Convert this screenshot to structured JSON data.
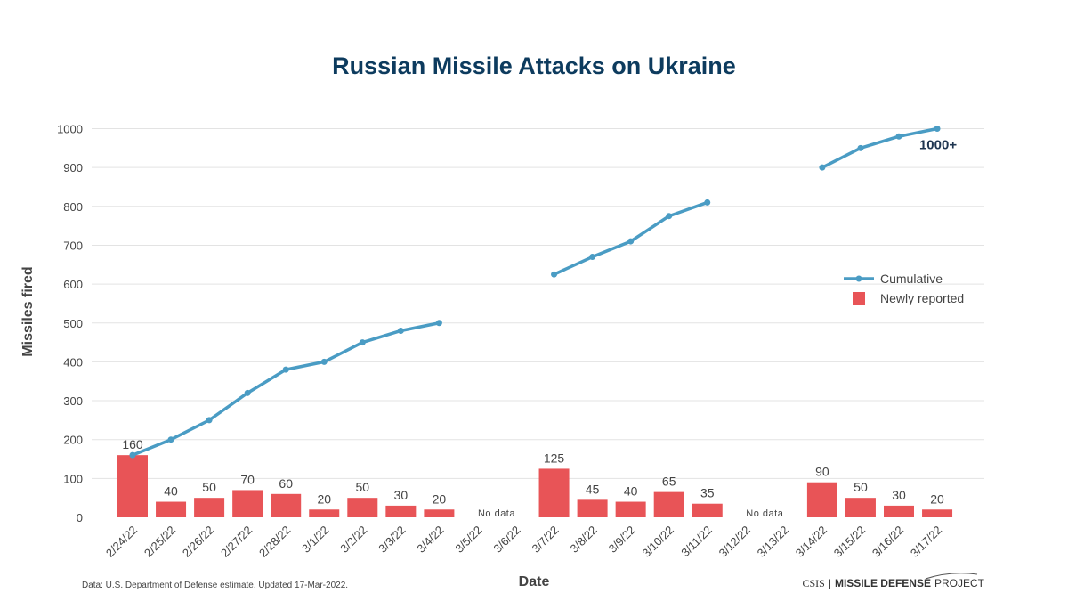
{
  "chart_data": {
    "type": "bar",
    "title": "Russian Missile Attacks on Ukraine",
    "xlabel": "Date",
    "ylabel": "Missiles fired",
    "ylim": [
      0,
      1000
    ],
    "yticks": [
      0,
      100,
      200,
      300,
      400,
      500,
      600,
      700,
      800,
      900,
      1000
    ],
    "grid": true,
    "legend_position": "right",
    "categories": [
      "2/24/22",
      "2/25/22",
      "2/26/22",
      "2/27/22",
      "2/28/22",
      "3/1/22",
      "3/2/22",
      "3/3/22",
      "3/4/22",
      "3/5/22",
      "3/6/22",
      "3/7/22",
      "3/8/22",
      "3/9/22",
      "3/10/22",
      "3/11/22",
      "3/12/22",
      "3/13/22",
      "3/14/22",
      "3/15/22",
      "3/16/22",
      "3/17/22"
    ],
    "series": [
      {
        "name": "Cumulative",
        "type": "line",
        "color": "#4a9cc4",
        "values": [
          160,
          200,
          250,
          320,
          380,
          400,
          450,
          480,
          500,
          null,
          null,
          625,
          670,
          710,
          775,
          810,
          null,
          null,
          900,
          950,
          980,
          1000
        ]
      },
      {
        "name": "Newly reported",
        "type": "bar",
        "color": "#e85457",
        "values": [
          160,
          40,
          50,
          70,
          60,
          20,
          50,
          30,
          20,
          null,
          null,
          125,
          45,
          40,
          65,
          35,
          null,
          null,
          90,
          50,
          30,
          20
        ]
      }
    ],
    "no_data_labels": [
      {
        "at": [
          "3/5/22",
          "3/6/22"
        ],
        "text": "No data"
      },
      {
        "at": [
          "3/12/22",
          "3/13/22"
        ],
        "text": "No data"
      }
    ],
    "annotations": [
      {
        "category": "3/17/22",
        "series": "Cumulative",
        "text": "1000+"
      }
    ]
  },
  "footer": {
    "source": "Data: U.S. Department of Defense estimate. Updated 17-Mar-2022.",
    "logo_org": "CSIS",
    "logo_project_bold": "MISSILE DEFENSE",
    "logo_project": "PROJECT"
  }
}
